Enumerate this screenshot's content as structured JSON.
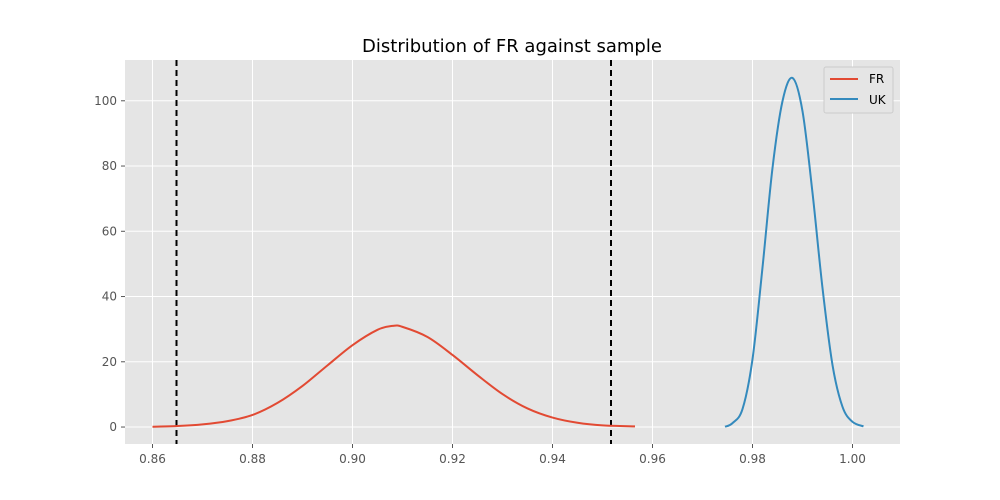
{
  "chart_data": {
    "type": "line",
    "title": "Distribution of FR against sample",
    "xlabel": "",
    "ylabel": "",
    "xlim": [
      0.8545,
      1.0095
    ],
    "ylim": [
      -5.2,
      112.5
    ],
    "x_ticks": [
      0.86,
      0.88,
      0.9,
      0.92,
      0.94,
      0.96,
      0.98,
      1.0
    ],
    "x_tick_labels": [
      "0.86",
      "0.88",
      "0.90",
      "0.92",
      "0.94",
      "0.96",
      "0.98",
      "1.00"
    ],
    "y_ticks": [
      0,
      20,
      40,
      60,
      80,
      100
    ],
    "y_tick_labels": [
      "0",
      "20",
      "40",
      "60",
      "80",
      "100"
    ],
    "grid": true,
    "legend_position": "top-right",
    "series": [
      {
        "name": "FR",
        "color": "#e24a33",
        "x": [
          0.86,
          0.865,
          0.87,
          0.875,
          0.88,
          0.885,
          0.89,
          0.895,
          0.9,
          0.905,
          0.908,
          0.91,
          0.915,
          0.92,
          0.925,
          0.93,
          0.935,
          0.94,
          0.945,
          0.95,
          0.9565
        ],
        "y": [
          0.1,
          0.3,
          0.8,
          1.8,
          3.7,
          7.4,
          12.6,
          18.9,
          25.1,
          29.8,
          31.0,
          30.7,
          27.6,
          22.1,
          15.9,
          10.1,
          5.7,
          2.9,
          1.3,
          0.5,
          0.2
        ]
      },
      {
        "name": "UK",
        "color": "#348abd",
        "x": [
          0.9745,
          0.976,
          0.978,
          0.98,
          0.982,
          0.984,
          0.986,
          0.988,
          0.99,
          0.992,
          0.994,
          0.996,
          0.998,
          1.0,
          1.0022
        ],
        "y": [
          0.1,
          1.2,
          5.5,
          20.8,
          48.9,
          79.4,
          99.9,
          107.0,
          96.8,
          71.8,
          42.6,
          19.0,
          6.2,
          1.6,
          0.2
        ]
      }
    ],
    "vlines": [
      {
        "x": 0.8648,
        "color": "#000000",
        "style": "dashed"
      },
      {
        "x": 0.9517,
        "color": "#000000",
        "style": "dashed"
      }
    ],
    "plot_background": "#e5e5e5",
    "grid_color": "#ffffff",
    "tick_color": "#555555"
  }
}
